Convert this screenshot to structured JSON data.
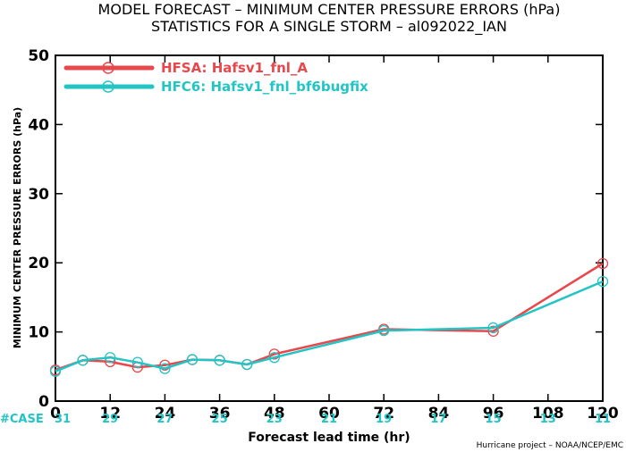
{
  "chart_data": {
    "type": "line",
    "title": "MODEL FORECAST – MINIMUM CENTER PRESSURE ERRORS (hPa)",
    "subtitle": "STATISTICS FOR A SINGLE STORM – al092022_IAN",
    "xlabel": "Forecast lead time (hr)",
    "ylabel": "MINIMUM CENTER PRESSURE ERRORS (hPa)",
    "xlim": [
      0,
      120
    ],
    "ylim": [
      0,
      50
    ],
    "xticks": [
      0,
      12,
      24,
      36,
      48,
      60,
      72,
      84,
      96,
      108,
      120
    ],
    "yticks": [
      0,
      10,
      20,
      30,
      40,
      50
    ],
    "legend_position": "top-left",
    "grid": false,
    "series": [
      {
        "name": "HFSA: Hafsv1_fnl_A",
        "color": "#e8474c",
        "x": [
          0,
          6,
          12,
          18,
          24,
          30,
          36,
          42,
          48,
          72,
          96,
          120
        ],
        "values": [
          4.5,
          5.9,
          5.7,
          4.9,
          5.2,
          6.0,
          5.9,
          5.3,
          6.8,
          10.4,
          10.1,
          19.9
        ]
      },
      {
        "name": "HFC6: Hafsv1_fnl_bf6bugfix",
        "color": "#22c4c4",
        "x": [
          0,
          6,
          12,
          18,
          24,
          30,
          36,
          42,
          48,
          72,
          96,
          120
        ],
        "values": [
          4.3,
          5.9,
          6.3,
          5.6,
          4.7,
          6.0,
          5.9,
          5.3,
          6.3,
          10.2,
          10.6,
          17.3
        ]
      }
    ],
    "cases": {
      "label": "#CASE",
      "color": "#22c4c4",
      "values": [
        "31",
        "29",
        "27",
        "25",
        "23",
        "21",
        "19",
        "17",
        "15",
        "13",
        "11"
      ]
    },
    "credit": "Hurricane project – NOAA/NCEP/EMC"
  }
}
